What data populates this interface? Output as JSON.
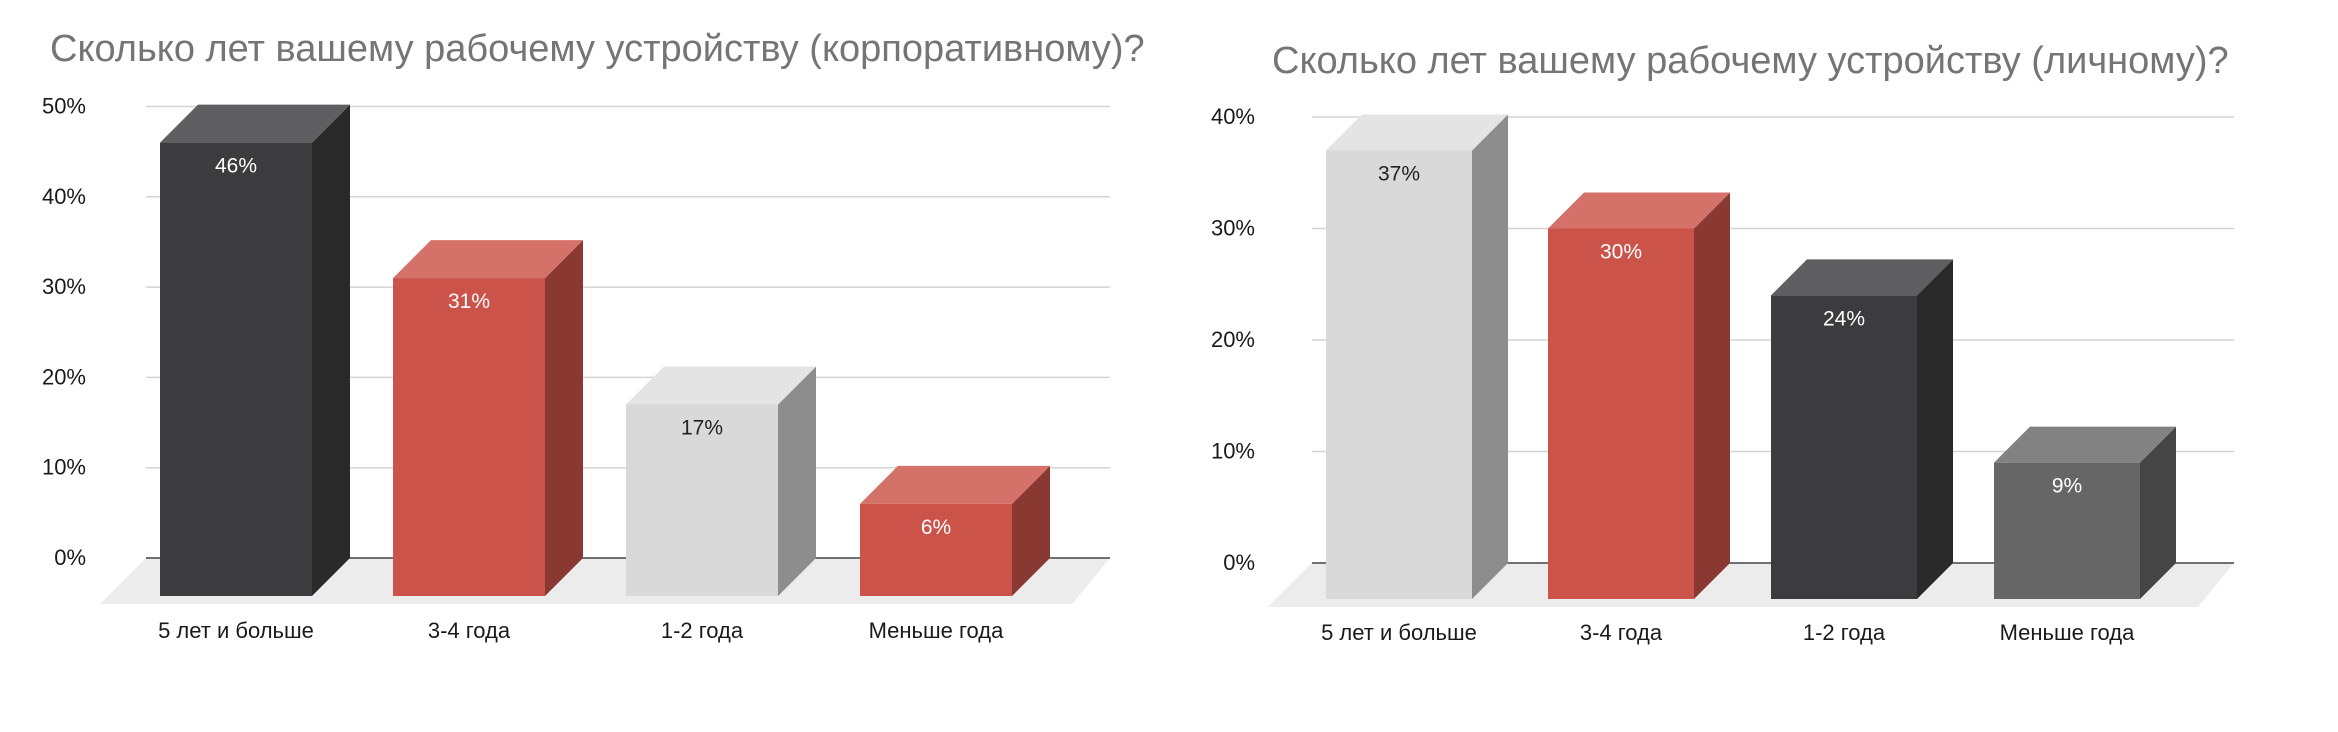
{
  "chart_data": [
    {
      "type": "bar",
      "title": "Сколько лет вашему рабочему устройству (корпоративному)?",
      "categories": [
        "5 лет и больше",
        "3-4 года",
        "1-2 года",
        "Меньше года"
      ],
      "values": [
        46,
        31,
        17,
        6
      ],
      "data_labels": [
        "46%",
        "31%",
        "17%",
        "6%"
      ],
      "bar_colors": [
        "#3c3c3e",
        "#cb5349",
        "#d9d9d9",
        "#cb5349"
      ],
      "label_colors": [
        "#ffffff",
        "#ffffff",
        "#222222",
        "#ffffff"
      ],
      "y_ticks": [
        0,
        10,
        20,
        30,
        40,
        50
      ],
      "y_tick_labels": [
        "0%",
        "10%",
        "20%",
        "30%",
        "40%",
        "50%"
      ],
      "ylim": [
        0,
        50
      ],
      "grid": true,
      "legend": "none",
      "style": "3d"
    },
    {
      "type": "bar",
      "title": "Сколько лет вашему рабочему устройству (личному)?",
      "categories": [
        "5 лет и больше",
        "3-4 года",
        "1-2 года",
        "Меньше года"
      ],
      "values": [
        37,
        30,
        24,
        9
      ],
      "data_labels": [
        "37%",
        "30%",
        "24%",
        "9%"
      ],
      "bar_colors": [
        "#d9d9d9",
        "#cb5349",
        "#3c3c3e",
        "#666666"
      ],
      "label_colors": [
        "#222222",
        "#ffffff",
        "#ffffff",
        "#ffffff"
      ],
      "y_ticks": [
        0,
        10,
        20,
        30,
        40
      ],
      "y_tick_labels": [
        "0%",
        "10%",
        "20%",
        "30%",
        "40%"
      ],
      "ylim": [
        0,
        40
      ],
      "grid": true,
      "legend": "none",
      "style": "3d"
    }
  ]
}
